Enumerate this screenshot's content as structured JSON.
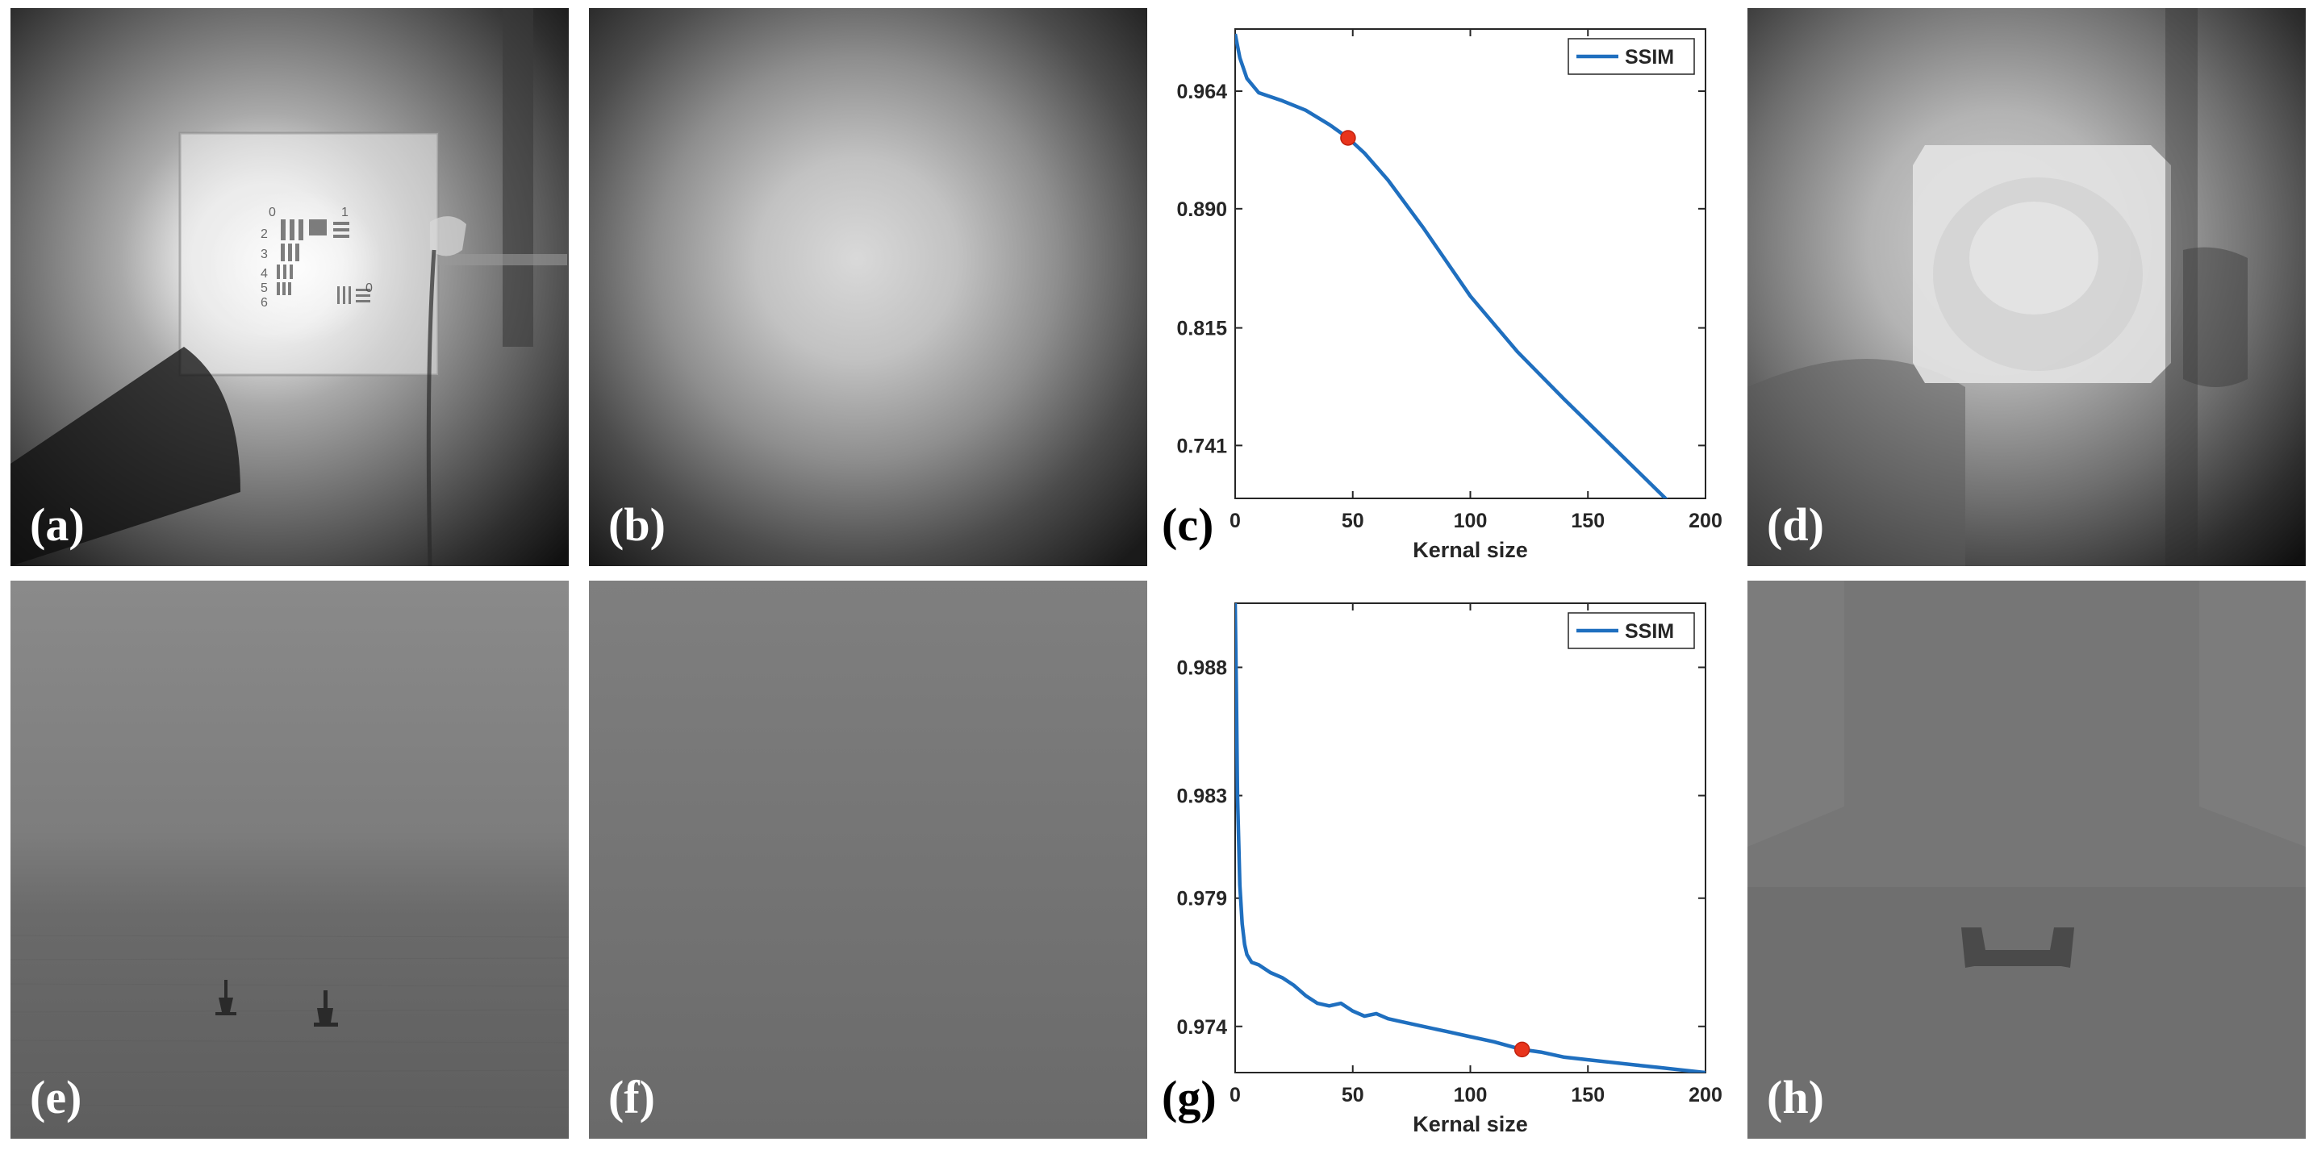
{
  "panels": {
    "a": "(a)",
    "b": "(b)",
    "c": "(c)",
    "d": "(d)",
    "e": "(e)",
    "f": "(f)",
    "g": "(g)",
    "h": "(h)"
  },
  "target_marks": {
    "left_column": [
      "0",
      "2",
      "3",
      "4",
      "5",
      "6"
    ],
    "right_column": [
      "1"
    ],
    "side": "0"
  },
  "chart_data": [
    {
      "type": "line",
      "panel": "(c)",
      "title": "",
      "xlabel": "Kernal size",
      "ylabel": "",
      "xlim": [
        0,
        200
      ],
      "ylim": [
        0.7077,
        1.0031
      ],
      "xticks": [
        0,
        50,
        100,
        150,
        200
      ],
      "yticks": [
        0.741,
        0.815,
        0.89,
        0.964
      ],
      "ytick_labels": [
        "0.741",
        "0.815",
        "0.890",
        "0.964"
      ],
      "legend": "top-right",
      "series": [
        {
          "name": "SSIM",
          "color": "#1f6fbf",
          "x": [
            0,
            2,
            5,
            10,
            20,
            30,
            40,
            48,
            55,
            65,
            80,
            100,
            120,
            140,
            160,
            180,
            200
          ],
          "y": [
            1.0,
            0.985,
            0.972,
            0.963,
            0.958,
            0.952,
            0.943,
            0.9346,
            0.925,
            0.908,
            0.878,
            0.835,
            0.8,
            0.77,
            0.741,
            0.712,
            0.683
          ]
        }
      ],
      "highlight": {
        "x": 48,
        "y": 0.9346,
        "color": "#e8341c"
      }
    },
    {
      "type": "line",
      "panel": "(g)",
      "title": "",
      "xlabel": "Kernal size",
      "ylabel": "",
      "xlim": [
        0,
        200
      ],
      "ylim": [
        0.9722,
        0.9905
      ],
      "xticks": [
        0,
        50,
        100,
        150,
        200
      ],
      "yticks": [
        0.974,
        0.979,
        0.983,
        0.988
      ],
      "ytick_labels": [
        "0.974",
        "0.979",
        "0.983",
        "0.988"
      ],
      "legend": "top-right",
      "series": [
        {
          "name": "SSIM",
          "color": "#1f6fbf",
          "x": [
            0,
            0.5,
            1,
            2,
            3,
            4,
            5,
            7,
            10,
            15,
            20,
            25,
            30,
            35,
            40,
            45,
            50,
            55,
            60,
            65,
            70,
            80,
            90,
            100,
            110,
            122,
            130,
            140,
            150,
            160,
            170,
            180,
            190,
            200
          ],
          "y": [
            0.9905,
            0.987,
            0.983,
            0.9795,
            0.978,
            0.9772,
            0.9768,
            0.9765,
            0.9764,
            0.9761,
            0.9759,
            0.9756,
            0.9752,
            0.9749,
            0.9748,
            0.9749,
            0.9746,
            0.9744,
            0.9745,
            0.9743,
            0.9742,
            0.974,
            0.9738,
            0.9736,
            0.9734,
            0.9731,
            0.973,
            0.9728,
            0.9727,
            0.9726,
            0.9725,
            0.9724,
            0.9723,
            0.9722
          ]
        }
      ],
      "highlight": {
        "x": 122,
        "y": 0.9731,
        "color": "#e8341c"
      }
    }
  ]
}
